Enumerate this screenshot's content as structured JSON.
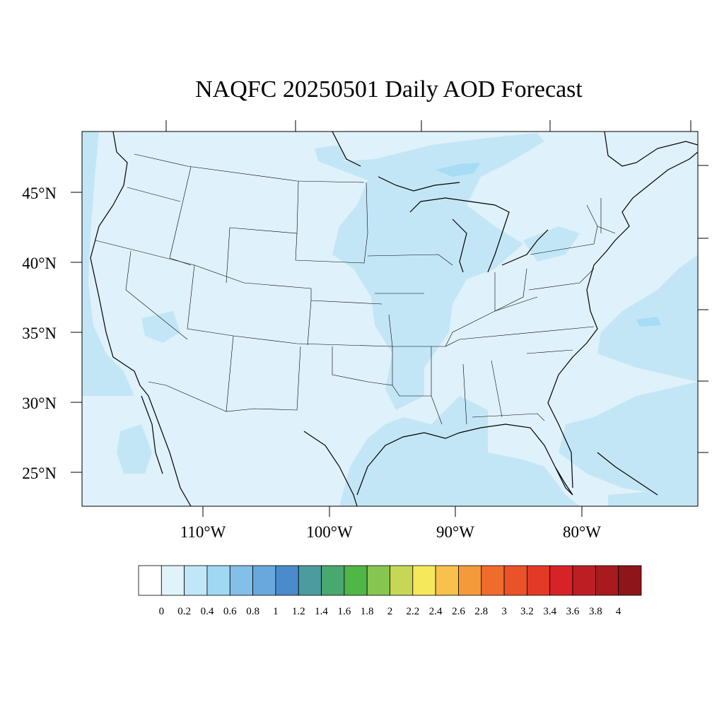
{
  "title": "NAQFC 20250501 Daily AOD Forecast",
  "map": {
    "region": "Contiguous United States",
    "lat_labels": [
      "45°N",
      "40°N",
      "35°N",
      "30°N",
      "25°N"
    ],
    "lon_labels": [
      "110°W",
      "100°W",
      "90°W",
      "80°W"
    ],
    "background_color": "#dff1fa",
    "elevated_color": "#c3e6f6",
    "peak_color": "#a6dcf5",
    "border_color": "#000000"
  },
  "colorbar": {
    "labels": [
      "0",
      "0.2",
      "0.4",
      "0.6",
      "0.8",
      "1",
      "1.2",
      "1.4",
      "1.6",
      "1.8",
      "2",
      "2.2",
      "2.4",
      "2.6",
      "2.8",
      "3",
      "3.2",
      "3.4",
      "3.6",
      "3.8",
      "4"
    ],
    "colors": [
      "#ffffff",
      "#e0f3fb",
      "#c0e7f8",
      "#a0d8f2",
      "#83bfe6",
      "#68a8dc",
      "#4a8bcb",
      "#4b9c9e",
      "#49a870",
      "#4fb647",
      "#86c650",
      "#c5d755",
      "#f6e85b",
      "#f8c04c",
      "#f49a3b",
      "#f06c2c",
      "#ea5229",
      "#e33a27",
      "#d62328",
      "#bd1e24",
      "#a81a1e",
      "#8e151a"
    ]
  }
}
